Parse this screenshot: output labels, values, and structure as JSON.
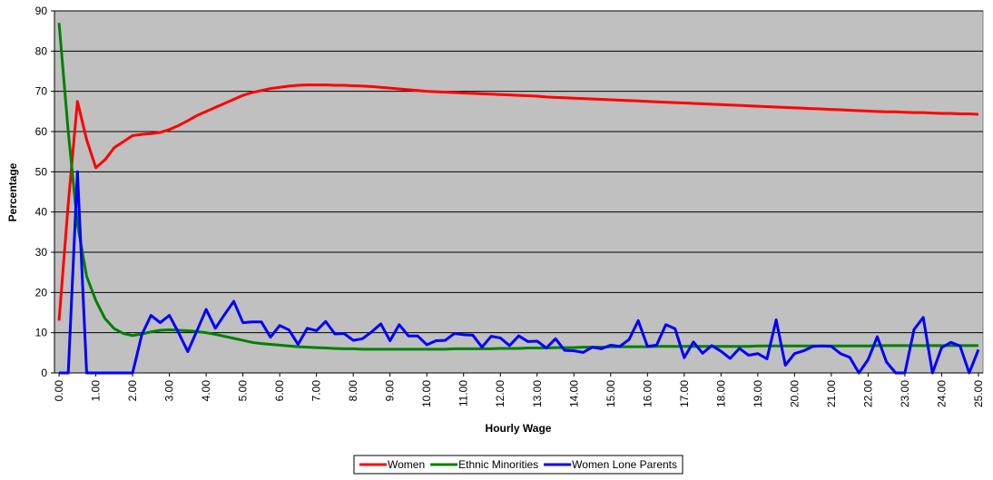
{
  "chart_data": {
    "type": "line",
    "xlabel": "Hourly Wage",
    "ylabel": "Percentage",
    "x": [
      0,
      0.25,
      0.5,
      0.75,
      1,
      1.25,
      1.5,
      1.75,
      2,
      2.25,
      2.5,
      2.75,
      3,
      3.25,
      3.5,
      3.75,
      4,
      4.25,
      4.5,
      4.75,
      5,
      5.25,
      5.5,
      5.75,
      6,
      6.25,
      6.5,
      6.75,
      7,
      7.25,
      7.5,
      7.75,
      8,
      8.25,
      8.5,
      8.75,
      9,
      9.25,
      9.5,
      9.75,
      10,
      10.25,
      10.5,
      10.75,
      11,
      11.25,
      11.5,
      11.75,
      12,
      12.25,
      12.5,
      12.75,
      13,
      13.25,
      13.5,
      13.75,
      14,
      14.25,
      14.5,
      14.75,
      15,
      15.25,
      15.5,
      15.75,
      16,
      16.25,
      16.5,
      16.75,
      17,
      17.25,
      17.5,
      17.75,
      18,
      18.25,
      18.5,
      18.75,
      19,
      19.25,
      19.5,
      19.75,
      20,
      20.25,
      20.5,
      20.75,
      21,
      21.25,
      21.5,
      21.75,
      22,
      22.25,
      22.5,
      22.75,
      23,
      23.25,
      23.5,
      23.75,
      24,
      24.25,
      24.5,
      24.75,
      25
    ],
    "series": [
      {
        "name": "Women",
        "color": "#ff0000",
        "values": [
          13,
          42,
          67.5,
          58,
          51,
          53,
          56,
          57.5,
          59,
          59.3,
          59.5,
          59.8,
          60.5,
          61.5,
          62.7,
          64,
          65,
          66,
          67,
          68,
          69,
          69.7,
          70.2,
          70.7,
          71,
          71.3,
          71.5,
          71.6,
          71.6,
          71.6,
          71.5,
          71.5,
          71.4,
          71.3,
          71.2,
          71,
          70.8,
          70.6,
          70.4,
          70.2,
          70,
          69.9,
          69.8,
          69.7,
          69.6,
          69.5,
          69.4,
          69.3,
          69.2,
          69.1,
          69.0,
          68.9,
          68.8,
          68.6,
          68.5,
          68.4,
          68.3,
          68.2,
          68.1,
          68.0,
          67.9,
          67.8,
          67.7,
          67.6,
          67.5,
          67.4,
          67.3,
          67.2,
          67.1,
          67.0,
          66.9,
          66.8,
          66.7,
          66.6,
          66.5,
          66.4,
          66.3,
          66.2,
          66.1,
          66.0,
          65.9,
          65.8,
          65.7,
          65.6,
          65.5,
          65.4,
          65.3,
          65.2,
          65.1,
          65.0,
          64.9,
          64.9,
          64.8,
          64.7,
          64.7,
          64.6,
          64.5,
          64.5,
          64.4,
          64.4,
          64.3
        ]
      },
      {
        "name": "Ethnic Minorities",
        "color": "#008000",
        "values": [
          87,
          60,
          37,
          24,
          18,
          13.5,
          11,
          9.8,
          9.3,
          9.7,
          10.2,
          10.6,
          10.7,
          10.6,
          10.5,
          10.3,
          10,
          9.6,
          9.1,
          8.6,
          8.1,
          7.6,
          7.3,
          7.1,
          6.9,
          6.7,
          6.5,
          6.4,
          6.3,
          6.2,
          6.1,
          6.0,
          6.0,
          5.9,
          5.9,
          5.9,
          5.9,
          5.9,
          5.9,
          5.9,
          5.9,
          5.9,
          5.9,
          6.0,
          6.0,
          6.0,
          6.0,
          6.0,
          6.1,
          6.1,
          6.1,
          6.2,
          6.2,
          6.2,
          6.3,
          6.3,
          6.3,
          6.4,
          6.4,
          6.4,
          6.5,
          6.5,
          6.5,
          6.5,
          6.5,
          6.6,
          6.6,
          6.6,
          6.6,
          6.6,
          6.6,
          6.6,
          6.6,
          6.6,
          6.6,
          6.6,
          6.7,
          6.7,
          6.7,
          6.7,
          6.7,
          6.7,
          6.7,
          6.7,
          6.7,
          6.7,
          6.7,
          6.7,
          6.7,
          6.8,
          6.8,
          6.8,
          6.8,
          6.8,
          6.8,
          6.8,
          6.8,
          6.8,
          6.8,
          6.8,
          6.8
        ]
      },
      {
        "name": "Women Lone Parents",
        "color": "#0000ff",
        "values": [
          0,
          0,
          50,
          0,
          0,
          0,
          0,
          0,
          0,
          9.5,
          14.3,
          12.5,
          14.3,
          10,
          5.3,
          10.5,
          15.8,
          11.1,
          14.5,
          17.8,
          12.5,
          12.7,
          12.7,
          8.9,
          11.8,
          10.7,
          7.1,
          11.1,
          10.5,
          12.8,
          9.7,
          9.8,
          8.1,
          8.5,
          10.2,
          12.2,
          8.0,
          12.0,
          9.2,
          9.2,
          7,
          8,
          8.1,
          9.8,
          9.5,
          9.4,
          6.4,
          9.1,
          8.7,
          6.8,
          9.2,
          7.8,
          7.9,
          6.2,
          8.5,
          5.6,
          5.5,
          5.1,
          6.4,
          6.0,
          6.9,
          6.6,
          8.3,
          13,
          6.6,
          6.9,
          12,
          11,
          3.8,
          7.7,
          4.9,
          6.8,
          5.4,
          3.6,
          6.1,
          4.4,
          4.8,
          3.5,
          13.2,
          1.9,
          4.8,
          5.5,
          6.6,
          6.7,
          6.6,
          4.8,
          3.9,
          0,
          3.3,
          9,
          2.7,
          0,
          0,
          10.8,
          13.8,
          0,
          6.3,
          7.6,
          6.7,
          0,
          5.8
        ]
      }
    ],
    "xlim": [
      -0.125,
      25.125
    ],
    "ylim": [
      0,
      90
    ],
    "yticks": [
      0,
      10,
      20,
      30,
      40,
      50,
      60,
      70,
      80,
      90
    ],
    "xticks": [
      {
        "value": 0,
        "label": "0.00"
      },
      {
        "value": 1,
        "label": "1.00"
      },
      {
        "value": 2,
        "label": "2.00"
      },
      {
        "value": 3,
        "label": "3.00"
      },
      {
        "value": 4,
        "label": "4.00"
      },
      {
        "value": 5,
        "label": "5.00"
      },
      {
        "value": 6,
        "label": "6.00"
      },
      {
        "value": 7,
        "label": "7.00"
      },
      {
        "value": 8,
        "label": "8.00"
      },
      {
        "value": 9,
        "label": "9.00"
      },
      {
        "value": 10,
        "label": "10.00"
      },
      {
        "value": 11,
        "label": "11.00"
      },
      {
        "value": 12,
        "label": "12.00"
      },
      {
        "value": 13,
        "label": "13.00"
      },
      {
        "value": 14,
        "label": "14.00"
      },
      {
        "value": 15,
        "label": "15.00"
      },
      {
        "value": 16,
        "label": "16.00"
      },
      {
        "value": 17,
        "label": "17.00"
      },
      {
        "value": 18,
        "label": "18.00"
      },
      {
        "value": 19,
        "label": "19.00"
      },
      {
        "value": 20,
        "label": "20.00"
      },
      {
        "value": 21,
        "label": "21.00"
      },
      {
        "value": 22,
        "label": "22.00"
      },
      {
        "value": 23,
        "label": "23.00"
      },
      {
        "value": 24,
        "label": "24.00"
      },
      {
        "value": 25,
        "label": "25.00"
      }
    ],
    "grid": true,
    "plot_background": "#c0c0c0",
    "legend": "bottom"
  }
}
